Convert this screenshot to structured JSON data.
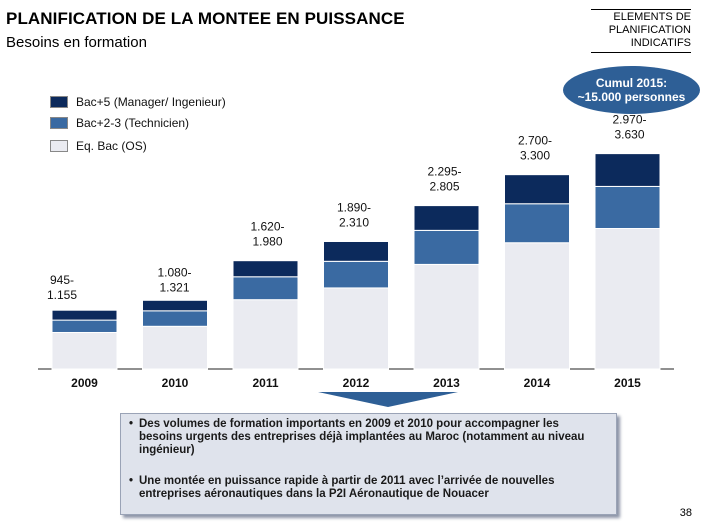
{
  "header": {
    "title": "PLANIFICATION DE LA MONTEE EN PUISSANCE",
    "subtitle": "Besoins en formation",
    "tag_line1": "ELEMENTS DE",
    "tag_line2": "PLANIFICATION",
    "tag_line3": "INDICATIFS"
  },
  "bubble": {
    "line1": "Cumul 2015:",
    "line2": "~15.000 personnes"
  },
  "legend": [
    {
      "label": "Bac+5 (Manager/ Ingenieur)",
      "color": "#0c2a5c"
    },
    {
      "label": "Bac+2-3 (Technicien)",
      "color": "#3a6aa2"
    },
    {
      "label": "Eq. Bac (OS)",
      "color": "#eaebf1"
    }
  ],
  "chart_data": {
    "type": "bar",
    "stacked": true,
    "categories": [
      "2009",
      "2010",
      "2011",
      "2012",
      "2013",
      "2014",
      "2015"
    ],
    "series": [
      {
        "name": "Eq. Bac (OS)",
        "color": "#eaebf1",
        "values": [
          590,
          690,
          1120,
          1310,
          1690,
          2040,
          2270
        ]
      },
      {
        "name": "Bac+2-3 (Technicien)",
        "color": "#3a6aa2",
        "values": [
          200,
          250,
          370,
          430,
          550,
          630,
          680
        ]
      },
      {
        "name": "Bac+5 (Manager/ Ingenieur)",
        "color": "#0c2a5c",
        "values": [
          160,
          170,
          260,
          320,
          400,
          470,
          530
        ]
      }
    ],
    "range_labels": [
      [
        "945-",
        "1.155"
      ],
      [
        "1.080-",
        "1.321"
      ],
      [
        "1.620-",
        "1.980"
      ],
      [
        "1.890-",
        "2.310"
      ],
      [
        "2.295-",
        "2.805"
      ],
      [
        "2.700-",
        "3.300"
      ],
      [
        "2.970-",
        "3.630"
      ]
    ],
    "ylim": [
      0,
      3700
    ],
    "grid": false,
    "title": "",
    "xlabel": "",
    "ylabel": ""
  },
  "notes": [
    "Des volumes de formation importants en 2009 et 2010 pour accompagner les besoins urgents des entreprises déjà implantées au Maroc (notamment au niveau ingénieur)",
    "Une montée en puissance rapide à partir de 2011 avec l’arrivée de nouvelles entreprises aéronautiques dans la P2I Aéronautique de Nouacer"
  ],
  "page_number": "38"
}
